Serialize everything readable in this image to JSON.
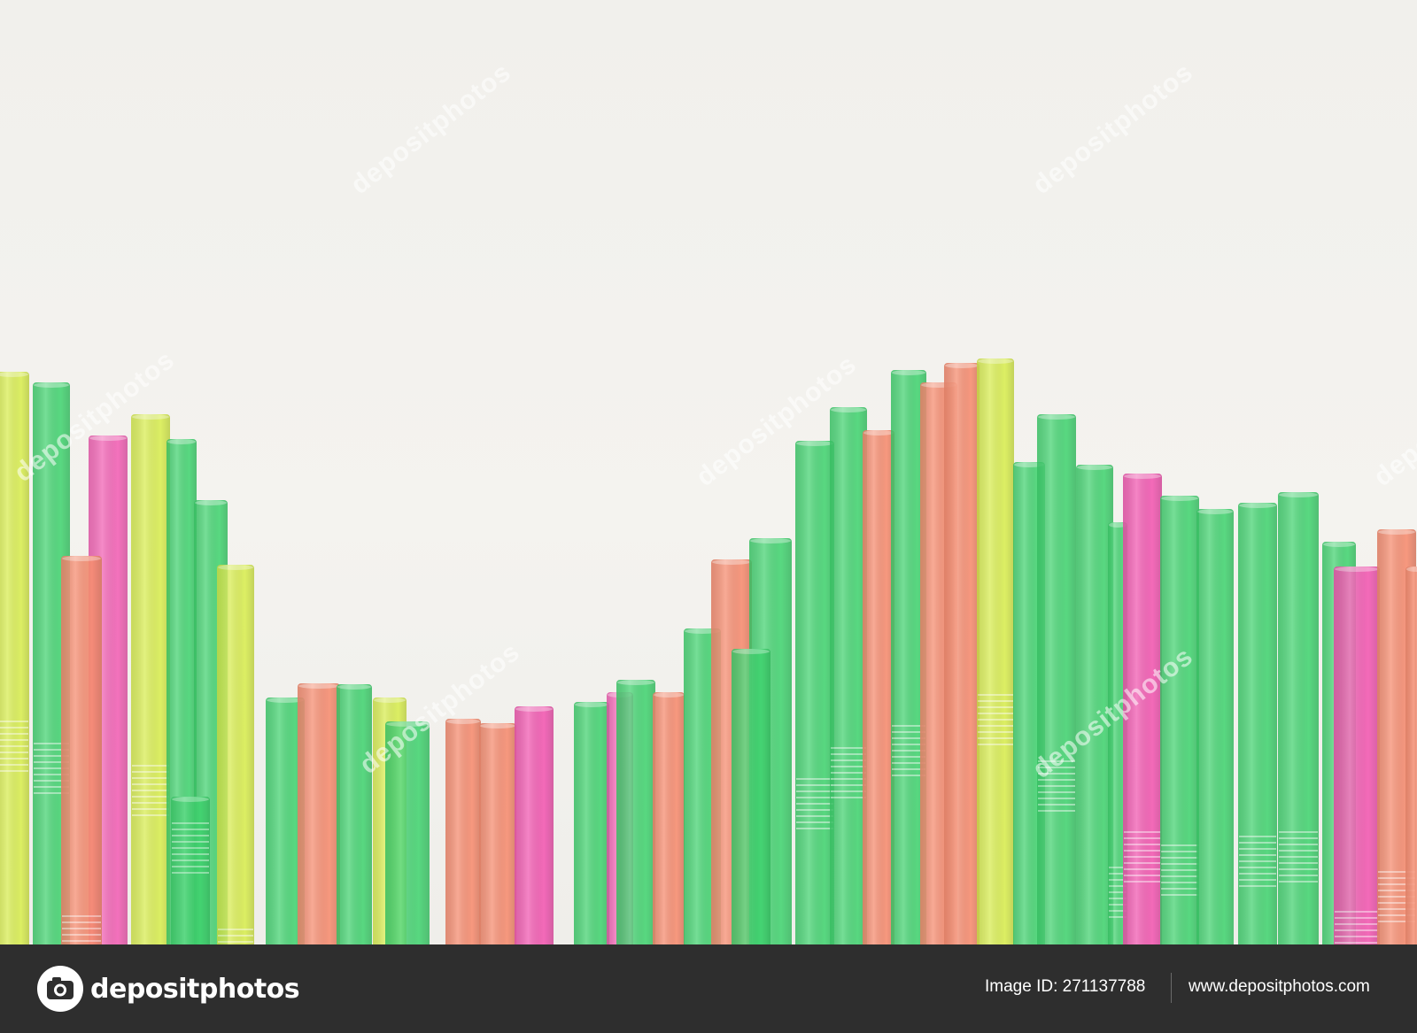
{
  "photo": {
    "subject": "colorful plastic drinking straws",
    "colors": {
      "background": "#f3f2ee",
      "green": "#3ed46e",
      "pink": "#f45cb4",
      "coral": "#f88f73",
      "yellow": "#d9ef4c",
      "footer": "#2e2e2e"
    },
    "watermark_text": "depositphotos"
  },
  "footer": {
    "logo_icon": "camera-icon",
    "logo_text": "depositphotos",
    "image_id": "Image ID: 271137788",
    "site_url": "www.depositphotos.com"
  }
}
